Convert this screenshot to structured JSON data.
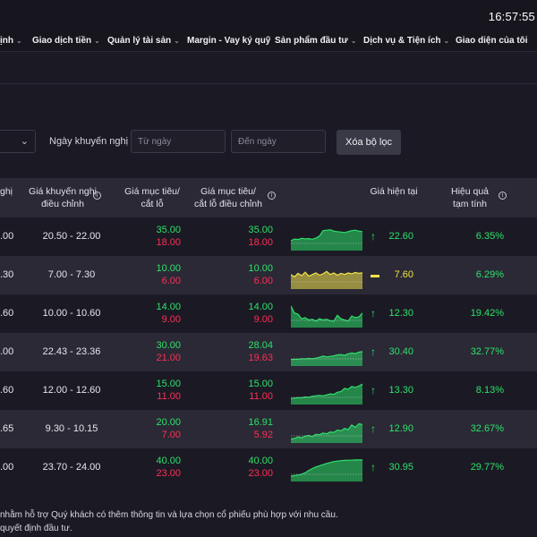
{
  "header": {
    "clock": "16:57:55"
  },
  "nav": {
    "items": [
      {
        "label": "ịnh",
        "chevron": true
      },
      {
        "label": "Giao dịch tiền",
        "chevron": true
      },
      {
        "label": "Quản lý tài sản",
        "chevron": true
      },
      {
        "label": "Margin - Vay ký quỹ",
        "chevron": false
      },
      {
        "label": "Sản phẩm đầu tư",
        "chevron": true
      },
      {
        "label": "Dịch vụ & Tiện ích",
        "chevron": true
      },
      {
        "label": "Giao diện của tôi",
        "chevron": false
      }
    ]
  },
  "filters": {
    "date_label": "Ngày khuyến nghị",
    "from_placeholder": "Từ ngày",
    "to_placeholder": "Đến ngày",
    "clear_label": "Xóa bộ lọc"
  },
  "table": {
    "headers": {
      "prev_line1": "ghị",
      "range_line1": "Giá khuyến nghị",
      "range_line2": "điều chỉnh",
      "target_line1": "Giá mục tiêu/",
      "target_line2": "cắt lỗ",
      "target_adj_line1": "Giá mục tiêu/",
      "target_adj_line2": "cắt lỗ điều chỉnh",
      "current": "Giá hiện tại",
      "perf_line1": "Hiệu quả",
      "perf_line2": "tạm tính"
    },
    "rows": [
      {
        "prev": ".00",
        "range": "20.50 - 22.00",
        "target": "35.00",
        "stop": "18.00",
        "target_adj": "35.00",
        "stop_adj": "18.00",
        "trend": "up",
        "price": "22.60",
        "perf": "6.35%",
        "spark": [
          0.35,
          0.42,
          0.4,
          0.45,
          0.43,
          0.44,
          0.41,
          0.46,
          0.55,
          0.78,
          0.8,
          0.82,
          0.76,
          0.74,
          0.72,
          0.7,
          0.74,
          0.78,
          0.8,
          0.76,
          0.74
        ]
      },
      {
        "prev": ".30",
        "range": "7.00 - 7.30",
        "target": "10.00",
        "stop": "6.00",
        "target_adj": "10.00",
        "stop_adj": "6.00",
        "trend": "flat",
        "price": "7.60",
        "perf": "6.29%",
        "spark": [
          0.55,
          0.45,
          0.6,
          0.5,
          0.65,
          0.48,
          0.55,
          0.62,
          0.52,
          0.58,
          0.68,
          0.55,
          0.62,
          0.52,
          0.6,
          0.55,
          0.62,
          0.58,
          0.64,
          0.6,
          0.62
        ]
      },
      {
        "prev": ".60",
        "range": "10.00 - 10.60",
        "target": "14.00",
        "stop": "9.00",
        "target_adj": "14.00",
        "stop_adj": "9.00",
        "trend": "up",
        "price": "12.30",
        "perf": "19.42%",
        "spark": [
          0.85,
          0.55,
          0.5,
          0.3,
          0.35,
          0.25,
          0.28,
          0.2,
          0.3,
          0.25,
          0.28,
          0.22,
          0.2,
          0.45,
          0.3,
          0.25,
          0.2,
          0.42,
          0.35,
          0.38,
          0.55
        ]
      },
      {
        "prev": ".00",
        "range": "22.43 - 23.36",
        "target": "30.00",
        "stop": "21.00",
        "target_adj": "28.04",
        "stop_adj": "19.63",
        "trend": "up",
        "price": "30.40",
        "perf": "32.77%",
        "spark": [
          0.2,
          0.22,
          0.21,
          0.24,
          0.23,
          0.25,
          0.24,
          0.26,
          0.3,
          0.35,
          0.32,
          0.34,
          0.36,
          0.4,
          0.42,
          0.38,
          0.45,
          0.48,
          0.46,
          0.52,
          0.55
        ]
      },
      {
        "prev": ".60",
        "range": "12.00 - 12.60",
        "target": "15.00",
        "stop": "11.00",
        "target_adj": "15.00",
        "stop_adj": "11.00",
        "trend": "up",
        "price": "13.30",
        "perf": "8.13%",
        "spark": [
          0.18,
          0.2,
          0.22,
          0.21,
          0.25,
          0.24,
          0.28,
          0.3,
          0.32,
          0.3,
          0.34,
          0.38,
          0.36,
          0.45,
          0.48,
          0.62,
          0.58,
          0.7,
          0.66,
          0.72,
          0.8
        ]
      },
      {
        "prev": ".65",
        "range": "9.30 - 10.15",
        "target": "20.00",
        "stop": "7.00",
        "target_adj": "16.91",
        "stop_adj": "5.92",
        "trend": "up",
        "price": "12.90",
        "perf": "32.67%",
        "spark": [
          0.1,
          0.12,
          0.18,
          0.15,
          0.22,
          0.25,
          0.2,
          0.3,
          0.28,
          0.35,
          0.32,
          0.4,
          0.38,
          0.48,
          0.45,
          0.55,
          0.5,
          0.7,
          0.6,
          0.75,
          0.72
        ]
      },
      {
        "prev": ".00",
        "range": "23.70 - 24.00",
        "target": "40.00",
        "stop": "23.00",
        "target_adj": "40.00",
        "stop_adj": "23.00",
        "trend": "up",
        "price": "30.95",
        "perf": "29.77%",
        "spark": [
          0.15,
          0.18,
          0.2,
          0.24,
          0.3,
          0.4,
          0.48,
          0.55,
          0.6,
          0.65,
          0.7,
          0.74,
          0.78,
          0.8,
          0.82,
          0.83,
          0.84,
          0.84,
          0.85,
          0.85,
          0.85
        ]
      }
    ]
  },
  "footnotes": {
    "line1": "nhằm hỗ trợ Quý khách có thêm thông tin và lựa chọn cổ phiếu phù hợp với nhu cầu.",
    "line2": "quyết định đầu tư."
  },
  "colors": {
    "up": "#2ee06a",
    "down": "#ff2d55",
    "flat": "#f2e24a",
    "row_alt": "#2a2935",
    "background": "#1b1a24"
  }
}
